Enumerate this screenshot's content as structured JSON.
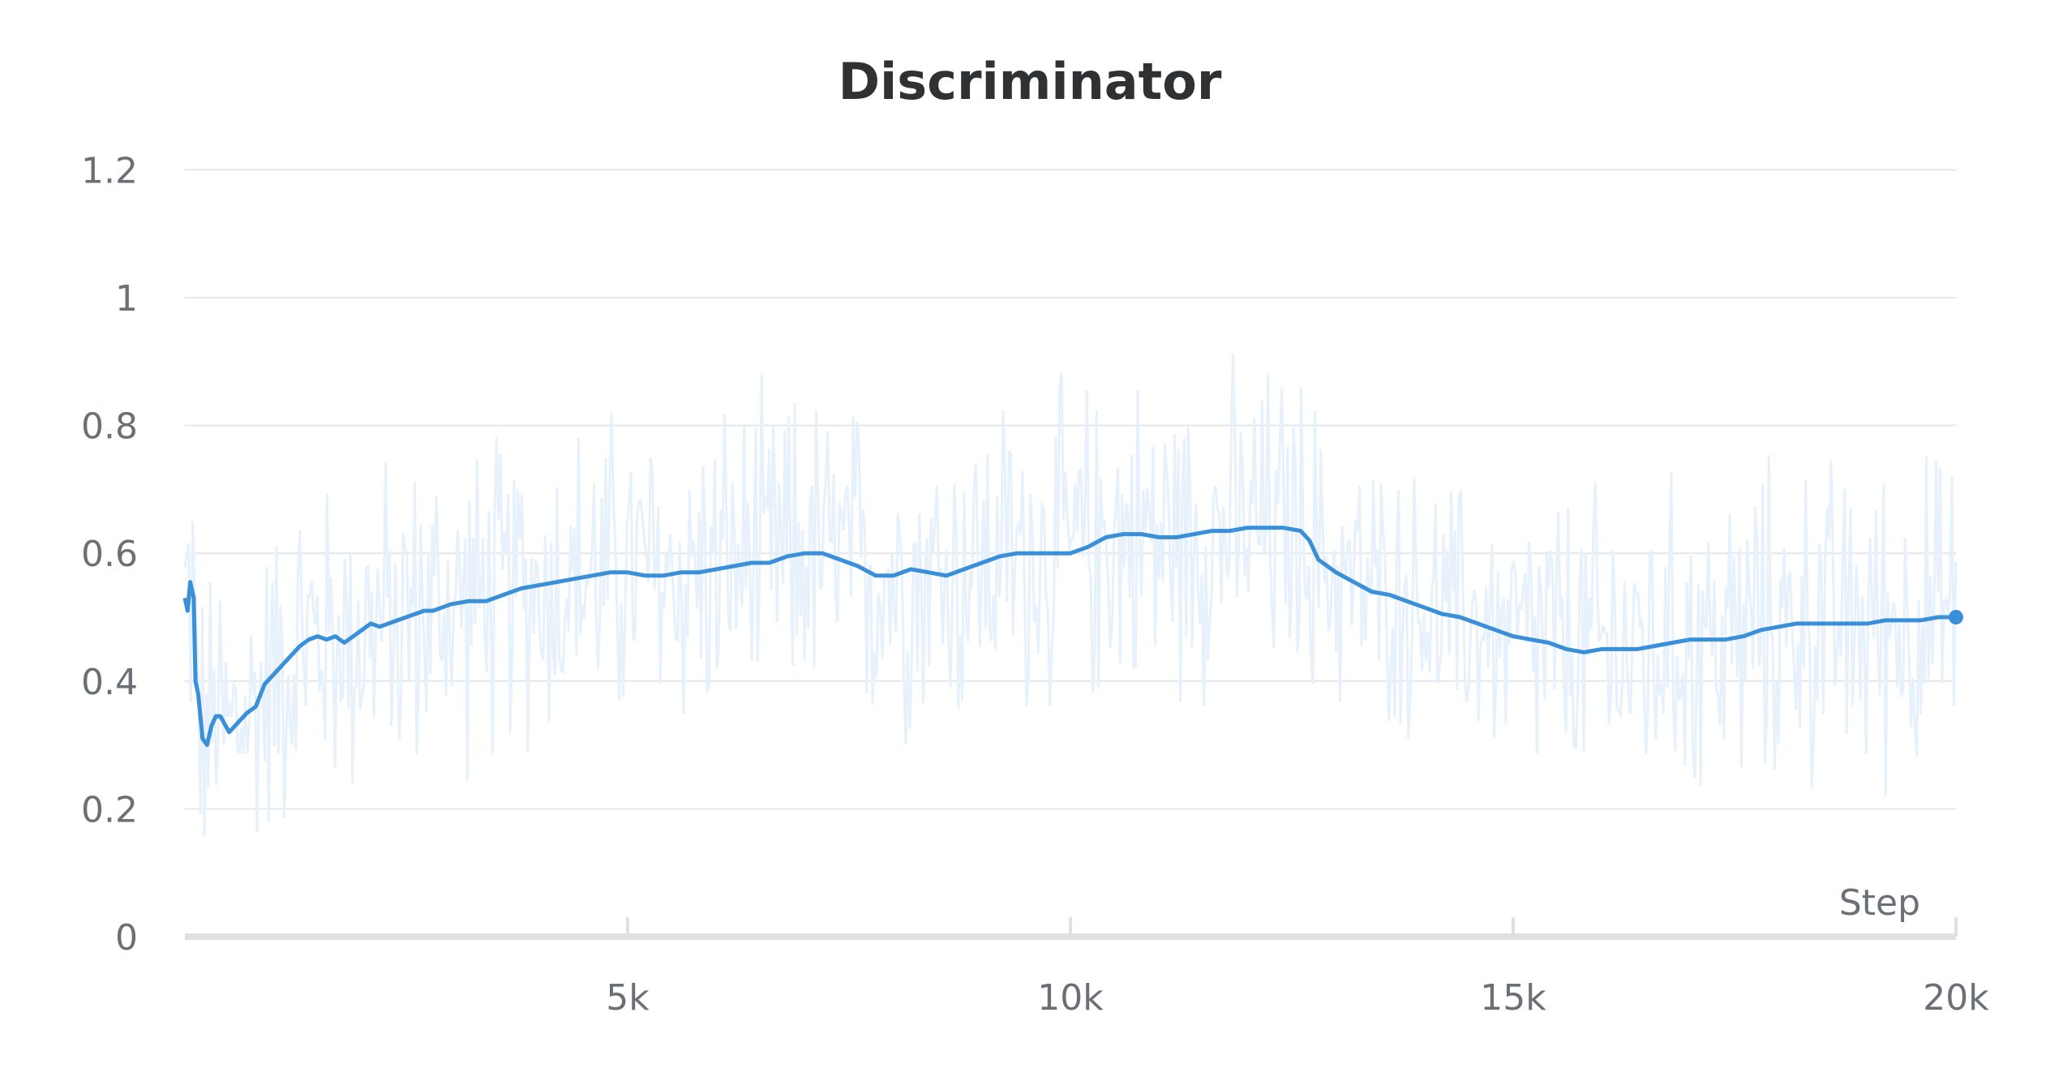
{
  "chart_data": {
    "type": "line",
    "title": "Discriminator",
    "xlabel": "Step",
    "ylabel": "",
    "xlim": [
      0,
      20000
    ],
    "ylim": [
      0,
      1.25
    ],
    "x_ticks": [
      {
        "value": 5000,
        "label": "5k"
      },
      {
        "value": 10000,
        "label": "10k"
      },
      {
        "value": 15000,
        "label": "15k"
      },
      {
        "value": 20000,
        "label": "20k"
      }
    ],
    "y_ticks": [
      {
        "value": 0,
        "label": "0"
      },
      {
        "value": 0.2,
        "label": "0.2"
      },
      {
        "value": 0.4,
        "label": "0.4"
      },
      {
        "value": 0.6,
        "label": "0.6"
      },
      {
        "value": 0.8,
        "label": "0.8"
      },
      {
        "value": 1,
        "label": "1"
      },
      {
        "value": 1.2,
        "label": "1.2"
      }
    ],
    "grid": true,
    "legend": "none",
    "colors": {
      "smoothed": "#3a8fd9",
      "raw": "#e6f1fb",
      "grid": "#e4e7eb",
      "axis": "#e0e0e0"
    },
    "series": [
      {
        "role": "smoothed",
        "x": [
          0,
          30,
          60,
          100,
          120,
          150,
          200,
          250,
          300,
          350,
          400,
          500,
          600,
          700,
          800,
          900,
          1000,
          1100,
          1200,
          1300,
          1400,
          1500,
          1600,
          1700,
          1800,
          1900,
          2000,
          2100,
          2200,
          2300,
          2400,
          2500,
          2600,
          2700,
          2800,
          2900,
          3000,
          3200,
          3400,
          3600,
          3800,
          4000,
          4200,
          4400,
          4600,
          4800,
          5000,
          5200,
          5400,
          5600,
          5800,
          6000,
          6200,
          6400,
          6600,
          6800,
          7000,
          7200,
          7400,
          7600,
          7800,
          8000,
          8200,
          8400,
          8600,
          8800,
          9000,
          9200,
          9400,
          9600,
          9800,
          10000,
          10200,
          10400,
          10600,
          10800,
          11000,
          11200,
          11400,
          11600,
          11800,
          12000,
          12200,
          12400,
          12600,
          12700,
          12800,
          13000,
          13200,
          13400,
          13600,
          13800,
          14000,
          14200,
          14400,
          14600,
          14800,
          15000,
          15200,
          15400,
          15600,
          15800,
          16000,
          16200,
          16400,
          16600,
          16800,
          17000,
          17200,
          17400,
          17600,
          17800,
          18000,
          18200,
          18400,
          18600,
          18800,
          19000,
          19200,
          19400,
          19600,
          19800,
          20000
        ],
        "values": [
          0.53,
          0.51,
          0.555,
          0.53,
          0.4,
          0.38,
          0.31,
          0.3,
          0.33,
          0.345,
          0.345,
          0.32,
          0.335,
          0.35,
          0.36,
          0.395,
          0.41,
          0.425,
          0.44,
          0.455,
          0.465,
          0.47,
          0.465,
          0.47,
          0.46,
          0.47,
          0.48,
          0.49,
          0.485,
          0.49,
          0.495,
          0.5,
          0.505,
          0.51,
          0.51,
          0.515,
          0.52,
          0.525,
          0.525,
          0.535,
          0.545,
          0.55,
          0.555,
          0.56,
          0.565,
          0.57,
          0.57,
          0.565,
          0.565,
          0.57,
          0.57,
          0.575,
          0.58,
          0.585,
          0.585,
          0.595,
          0.6,
          0.6,
          0.59,
          0.58,
          0.565,
          0.565,
          0.575,
          0.57,
          0.565,
          0.575,
          0.585,
          0.595,
          0.6,
          0.6,
          0.6,
          0.6,
          0.61,
          0.625,
          0.63,
          0.63,
          0.625,
          0.625,
          0.63,
          0.635,
          0.635,
          0.64,
          0.64,
          0.64,
          0.635,
          0.62,
          0.59,
          0.57,
          0.555,
          0.54,
          0.535,
          0.525,
          0.515,
          0.505,
          0.5,
          0.49,
          0.48,
          0.47,
          0.465,
          0.46,
          0.45,
          0.445,
          0.45,
          0.45,
          0.45,
          0.455,
          0.46,
          0.465,
          0.465,
          0.465,
          0.47,
          0.48,
          0.485,
          0.49,
          0.49,
          0.49,
          0.49,
          0.49,
          0.495,
          0.495,
          0.495,
          0.5,
          0.5
        ]
      }
    ]
  }
}
